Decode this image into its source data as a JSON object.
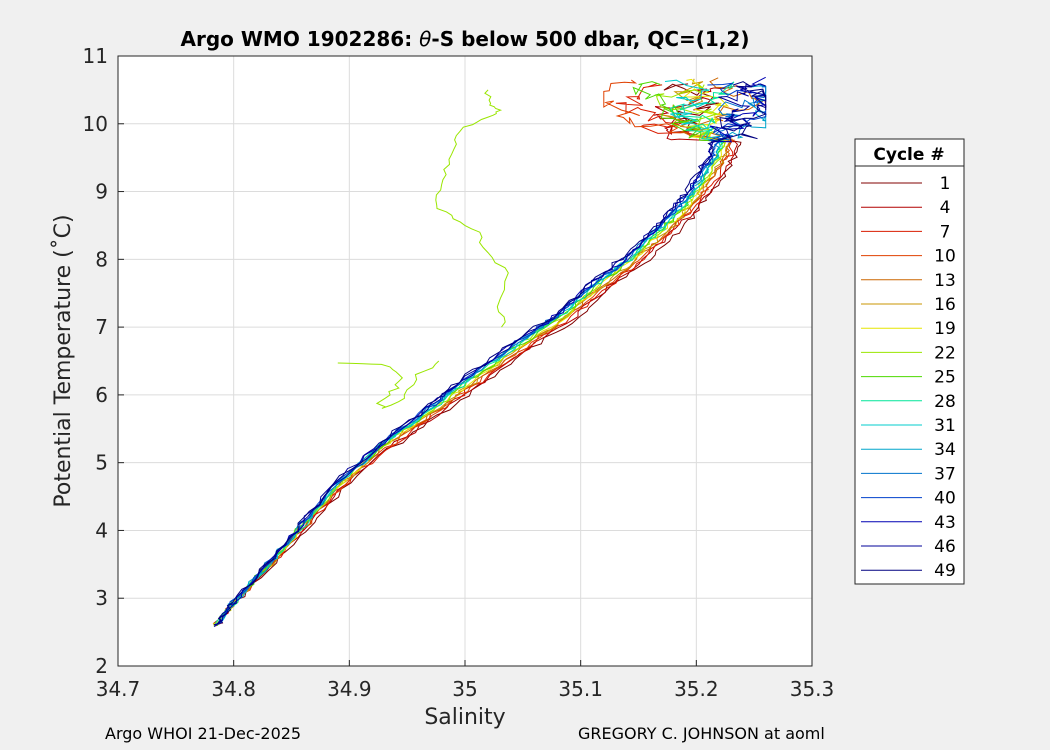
{
  "chart_data": {
    "type": "line",
    "title_prefix": "Argo WMO 1902286: ",
    "title_theta": "θ",
    "title_suffix": "-S below 500 dbar,  QC=(1,2)",
    "xlabel": "Salinity",
    "ylabel": "Potential Temperature (˚C)",
    "xlim": [
      34.7,
      35.3
    ],
    "ylim": [
      2,
      11
    ],
    "xticks": [
      "34.7",
      "34.8",
      "34.9",
      "35",
      "35.1",
      "35.2",
      "35.3"
    ],
    "yticks": [
      "2",
      "3",
      "4",
      "5",
      "6",
      "7",
      "8",
      "9",
      "10",
      "11"
    ],
    "grid": true,
    "legend": {
      "title": "Cycle #",
      "placement": "right",
      "entries": [
        "1",
        "4",
        "7",
        "10",
        "13",
        "16",
        "19",
        "22",
        "25",
        "28",
        "31",
        "34",
        "37",
        "40",
        "43",
        "46",
        "49"
      ],
      "colors": [
        "#800000",
        "#b20000",
        "#d91c00",
        "#e04000",
        "#cc6600",
        "#c89600",
        "#e6e600",
        "#99e600",
        "#4dd900",
        "#00e699",
        "#00cccc",
        "#00a6cc",
        "#0073cc",
        "#0040cc",
        "#0000b3",
        "#000099",
        "#000080"
      ]
    },
    "series_shape": {
      "deep": [
        [
          34.785,
          2.6
        ],
        [
          34.8,
          2.95
        ],
        [
          34.83,
          3.5
        ],
        [
          34.86,
          4.1
        ],
        [
          34.89,
          4.7
        ],
        [
          34.93,
          5.3
        ],
        [
          34.97,
          5.8
        ],
        [
          35.0,
          6.2
        ],
        [
          35.04,
          6.7
        ],
        [
          35.08,
          7.15
        ],
        [
          35.11,
          7.6
        ],
        [
          35.14,
          8.0
        ],
        [
          35.165,
          8.4
        ],
        [
          35.185,
          8.75
        ],
        [
          35.2,
          9.1
        ],
        [
          35.215,
          9.5
        ],
        [
          35.22,
          9.8
        ]
      ],
      "cycle_offsets": [
        0.018,
        0.015,
        0.013,
        0.011,
        0.009,
        0.008,
        0.006,
        0.004,
        0.003,
        0.002,
        0.001,
        0.0,
        -0.001,
        -0.002,
        -0.003,
        -0.004,
        -0.005
      ],
      "anomaly_22": [
        [
          35.034,
          7.0
        ],
        [
          35.03,
          7.3
        ],
        [
          35.038,
          7.8
        ],
        [
          35.02,
          8.1
        ],
        [
          35.01,
          8.4
        ],
        [
          34.99,
          8.6
        ],
        [
          34.975,
          8.8
        ],
        [
          34.98,
          9.1
        ],
        [
          34.985,
          9.4
        ],
        [
          34.99,
          9.7
        ],
        [
          35.0,
          9.95
        ],
        [
          35.02,
          10.1
        ],
        [
          35.03,
          10.2
        ],
        [
          35.02,
          10.3
        ],
        [
          35.02,
          10.5
        ]
      ],
      "anomaly_22_low": [
        [
          34.98,
          6.5
        ],
        [
          34.96,
          6.3
        ],
        [
          34.95,
          6.0
        ],
        [
          34.93,
          5.8
        ],
        [
          34.925,
          5.9
        ],
        [
          34.94,
          6.1
        ],
        [
          34.945,
          6.3
        ],
        [
          34.93,
          6.45
        ],
        [
          34.89,
          6.47
        ]
      ]
    }
  },
  "footer": {
    "left": "Argo WHOI 21-Dec-2025",
    "right": "GREGORY C. JOHNSON at aoml"
  }
}
